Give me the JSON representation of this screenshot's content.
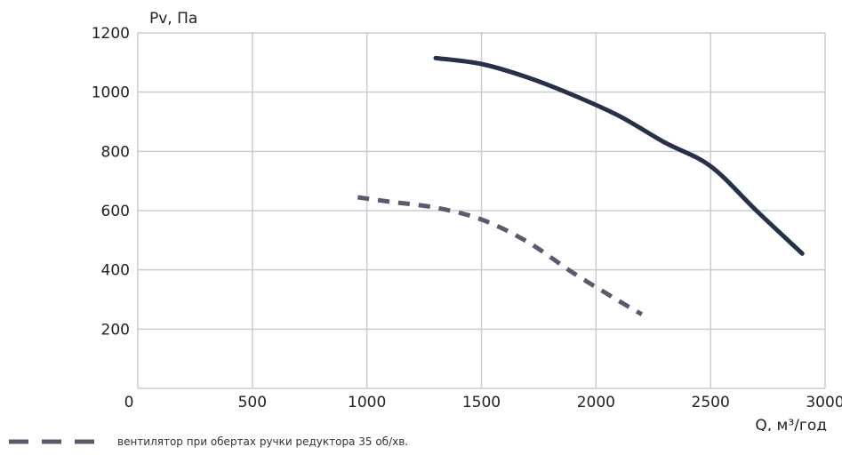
{
  "chart_data": {
    "type": "line",
    "title": "",
    "xlabel": "Q, м³/год",
    "ylabel": "Pv, Па",
    "xlim": [
      0,
      3000
    ],
    "ylim": [
      0,
      1200
    ],
    "x_ticks": [
      0,
      500,
      1000,
      1500,
      2000,
      2500,
      3000
    ],
    "y_ticks": [
      200,
      400,
      600,
      800,
      1000,
      1200
    ],
    "grid": true,
    "legend_position": "bottom-left",
    "series": [
      {
        "name": "",
        "style": "solid",
        "color": "#27304a",
        "points": [
          [
            1300,
            1115
          ],
          [
            1500,
            1095
          ],
          [
            1700,
            1050
          ],
          [
            1900,
            990
          ],
          [
            2100,
            920
          ],
          [
            2300,
            830
          ],
          [
            2500,
            750
          ],
          [
            2700,
            600
          ],
          [
            2900,
            455
          ]
        ]
      },
      {
        "name": "вентилятор при обертах ручки редуктора 35 об/хв.",
        "style": "dashed",
        "color": "#5a5a6e",
        "points": [
          [
            960,
            645
          ],
          [
            1100,
            630
          ],
          [
            1300,
            610
          ],
          [
            1500,
            570
          ],
          [
            1700,
            495
          ],
          [
            1900,
            390
          ],
          [
            2100,
            295
          ],
          [
            2200,
            250
          ]
        ]
      }
    ]
  },
  "legend": {
    "label": "вентилятор при обертах ручки редуктора 35 об/хв.",
    "color": "#5a5a6e"
  }
}
